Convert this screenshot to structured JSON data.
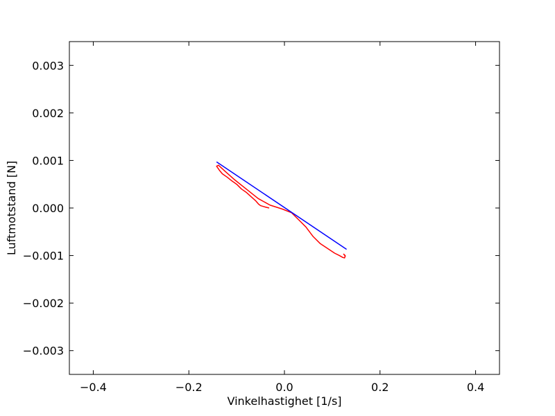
{
  "chart_data": {
    "type": "line",
    "xlabel": "Vinkelhastighet [1/s]",
    "ylabel": "Luftmotstand [N]",
    "xlim": [
      -0.45,
      0.45
    ],
    "ylim": [
      -0.0035,
      0.0035
    ],
    "x_ticks": [
      -0.4,
      -0.2,
      0.0,
      0.2,
      0.4
    ],
    "x_tick_labels": [
      "−0.4",
      "−0.2",
      "0.0",
      "0.2",
      "0.4"
    ],
    "y_ticks": [
      0.003,
      0.002,
      0.001,
      0.0,
      -0.001,
      -0.002,
      -0.003
    ],
    "y_tick_labels": [
      "0.003",
      "0.002",
      "0.001",
      "0.000",
      "−0.001",
      "−0.002",
      "−0.003"
    ],
    "grid": false,
    "series": [
      {
        "color": "#ff0000",
        "x": [
          -0.032,
          -0.04,
          -0.05,
          -0.054,
          -0.06,
          -0.07,
          -0.08,
          -0.09,
          -0.1,
          -0.11,
          -0.12,
          -0.13,
          -0.135,
          -0.14,
          -0.142,
          -0.138,
          -0.125,
          -0.105,
          -0.08,
          -0.055,
          -0.03,
          -0.005,
          0.015,
          0.03,
          0.045,
          0.06,
          0.075,
          0.09,
          0.105,
          0.115,
          0.122,
          0.126,
          0.127,
          0.124,
          0.128
        ],
        "y": [
          0.0,
          2e-05,
          5e-05,
          8e-05,
          0.00015,
          0.00024,
          0.00033,
          0.0004,
          0.0005,
          0.00057,
          0.00065,
          0.00072,
          0.00078,
          0.00085,
          0.00088,
          0.0009,
          0.00078,
          0.0006,
          0.0004,
          0.0002,
          6e-05,
          -2e-05,
          -0.0001,
          -0.00025,
          -0.0004,
          -0.0006,
          -0.00075,
          -0.00085,
          -0.00095,
          -0.001,
          -0.00104,
          -0.00105,
          -0.001,
          -0.00097,
          -0.00102
        ]
      },
      {
        "color": "#0000ff",
        "x": [
          -0.142,
          0.13
        ],
        "y": [
          0.00097,
          -0.00087
        ]
      }
    ]
  }
}
